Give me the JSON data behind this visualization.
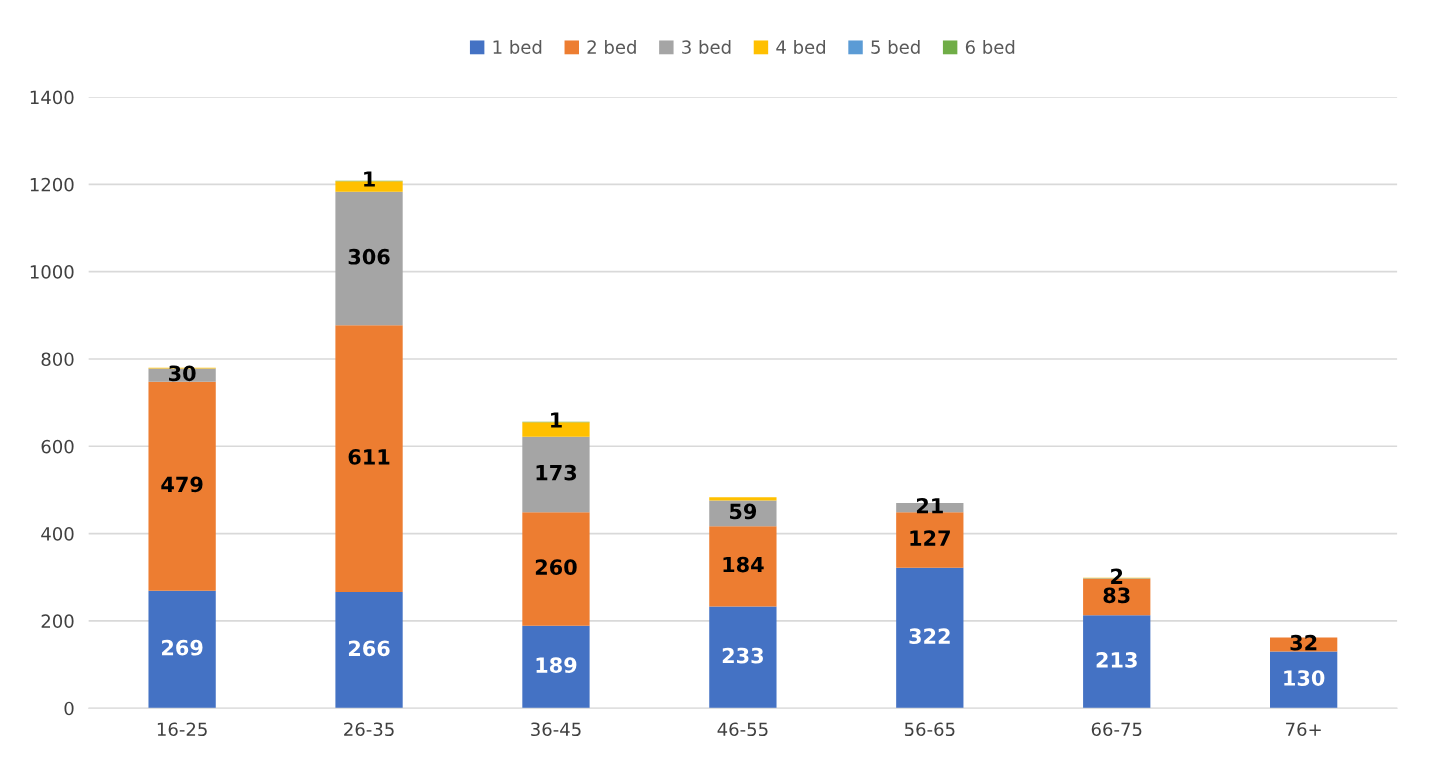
{
  "chart_data": {
    "type": "bar",
    "stacked": true,
    "categories": [
      "16-25",
      "26-35",
      "36-45",
      "46-55",
      "56-65",
      "66-75",
      "76+"
    ],
    "series": [
      {
        "name": "1 bed",
        "color": "#4472c4",
        "values": [
          269,
          266,
          189,
          233,
          322,
          213,
          130
        ],
        "value_labels": [
          "269",
          "266",
          "189",
          "233",
          "322",
          "213",
          "130"
        ]
      },
      {
        "name": "2 bed",
        "color": "#ed7d31",
        "values": [
          479,
          611,
          260,
          184,
          127,
          83,
          32
        ],
        "value_labels": [
          "479",
          "611",
          "260",
          "184",
          "127",
          "83",
          "32"
        ]
      },
      {
        "name": "3 bed",
        "color": "#a5a5a5",
        "values": [
          30,
          306,
          173,
          59,
          21,
          2,
          0
        ],
        "value_labels": [
          "30",
          "306",
          "173",
          "59",
          "21",
          "2",
          null
        ]
      },
      {
        "name": "4 bed",
        "color": "#ffc000",
        "values": [
          2,
          24,
          33,
          7,
          0,
          1,
          0
        ]
      },
      {
        "name": "5 bed",
        "color": "#5b9bd5",
        "values": [
          0,
          0,
          0,
          0,
          0,
          0,
          0
        ]
      },
      {
        "name": "6 bed",
        "color": "#70ad47",
        "values": [
          0,
          1,
          1,
          0,
          0,
          0,
          0
        ],
        "value_labels": [
          null,
          "1",
          "1",
          null,
          null,
          null,
          null
        ]
      }
    ],
    "ylim": [
      0,
      1400
    ],
    "yticks": [
      0,
      200,
      400,
      600,
      800,
      1000,
      1200,
      1400
    ],
    "grid": "y",
    "legend": "top"
  }
}
